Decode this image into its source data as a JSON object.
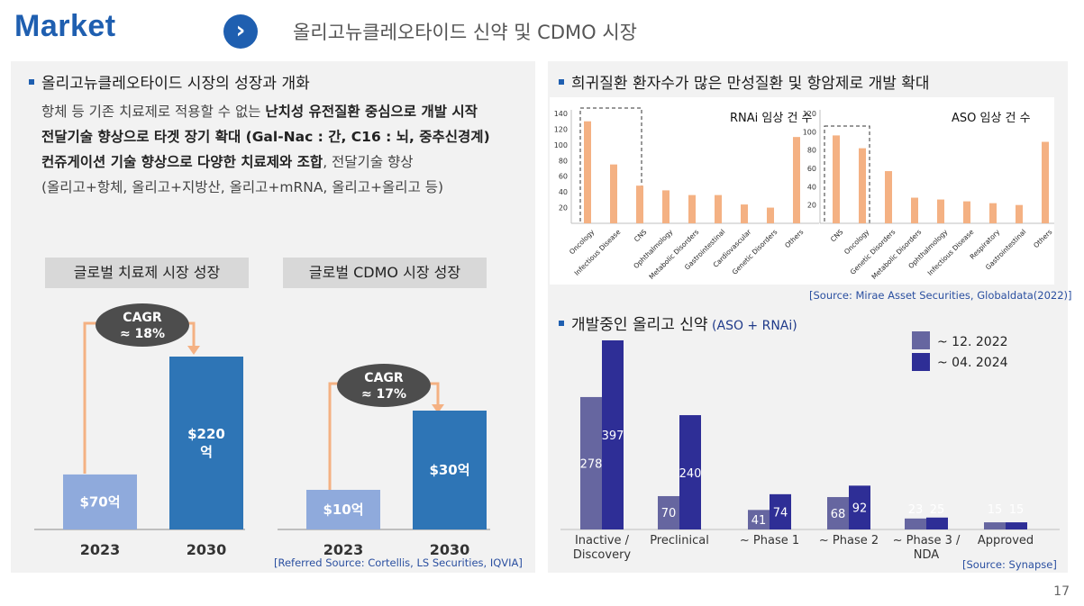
{
  "header": {
    "title": "Market",
    "subtitle": "올리고뉴클레오타이드 신약 및 CDMO 시장"
  },
  "left": {
    "heading": "올리고뉴클레오타이드 시장의 성장과 개화",
    "lines": [
      {
        "plain1": "항체 등 기존 치료제로 적용할 수 없는 ",
        "bold": "난치성 유전질환 중심으로 개발 시작",
        "plain2": ""
      },
      {
        "plain1": "",
        "bold": "전달기술 향상으로 타겟 장기 확대 (Gal-Nac : 간, C16 : 뇌, 중추신경계)",
        "plain2": ""
      },
      {
        "plain1": "",
        "bold": "컨쥬게이션 기술 향상으로  다양한 치료제와 조합",
        "plain2": ", 전달기술 향상"
      },
      {
        "plain1": " (올리고+항체, 올리고+지방산, 올리고+mRNA, 올리고+올리고 등)",
        "bold": "",
        "plain2": ""
      }
    ],
    "market_box": "글로벌 치료제 시장 성장",
    "cdmo_box": "글로벌 CDMO 시장 성장",
    "market_cagr": "CAGR\n≈ 18%",
    "cdmo_cagr": "CAGR\n≈ 17%",
    "source": "[Referred Source:  Cortellis, LS Securities, IQVIA]"
  },
  "right": {
    "heading1": "희귀질환 환자수가 많은 만성질환 및 항암제로 개발 확대",
    "rnai_title": "RNAi 임상 건 수",
    "aso_title": "ASO 임상 건 수",
    "source1": "[Source:  Mirae Asset Securities, Globaldata(2022)]",
    "heading2": "개발중인 올리고 신약",
    "heading2_sub": " (ASO + RNAi)",
    "source2": "[Source:  Synapse]"
  },
  "page_number": "17",
  "colors": {
    "brand": "#1f5fb0",
    "bar_light": "#8faadc",
    "bar_dark": "#2e75b6",
    "arrow": "#f4b183",
    "orange_bar": "#f4b183",
    "pipe_a": "#6666a0",
    "pipe_b": "#2e2e96"
  },
  "chart_data": [
    {
      "type": "bar",
      "title": "글로벌 치료제 시장 성장",
      "categories": [
        "2023",
        "2030"
      ],
      "values": [
        70,
        220
      ],
      "labels": [
        "$70억",
        "$220\n억"
      ]
    },
    {
      "type": "bar",
      "title": "글로벌 CDMO 시장 성장",
      "categories": [
        "2023",
        "2030"
      ],
      "values": [
        10,
        30
      ],
      "labels": [
        "$10억",
        "$30억"
      ]
    },
    {
      "type": "bar",
      "title": "RNAi 임상 건 수",
      "categories": [
        "Oncology",
        "Infectious Disease",
        "CNS",
        "Ophthalmology",
        "Metabolic Disorders",
        "Gastrointestinal",
        "Cardiovascular",
        "Genetic Disorders",
        "Others"
      ],
      "values": [
        130,
        75,
        48,
        42,
        36,
        36,
        24,
        20,
        110
      ],
      "yticks": [
        20,
        40,
        60,
        80,
        100,
        120,
        140
      ],
      "ylim": [
        0,
        140
      ]
    },
    {
      "type": "bar",
      "title": "ASO 임상 건 수",
      "categories": [
        "CNS",
        "Oncology",
        "Genetic Disorders",
        "Metabolic Disorders",
        "Ophthalmology",
        "Infectious Disease",
        "Respiratory",
        "Gastrointestinal",
        "Others"
      ],
      "values": [
        96,
        82,
        57,
        28,
        26,
        24,
        22,
        20,
        89
      ],
      "yticks": [
        20,
        40,
        60,
        80,
        100,
        120
      ],
      "ylim": [
        0,
        120
      ]
    },
    {
      "type": "bar",
      "title": "개발중인 올리고 신약 (ASO + RNAi)",
      "categories": [
        "Inactive /\nDiscovery",
        "Preclinical",
        "~ Phase 1",
        "~ Phase 2",
        "~ Phase 3 /\nNDA",
        "Approved"
      ],
      "series": [
        {
          "name": "~ 12. 2022",
          "values": [
            278,
            70,
            41,
            68,
            23,
            15
          ]
        },
        {
          "name": "~ 04. 2024",
          "values": [
            397,
            240,
            74,
            92,
            25,
            15
          ]
        }
      ]
    }
  ]
}
